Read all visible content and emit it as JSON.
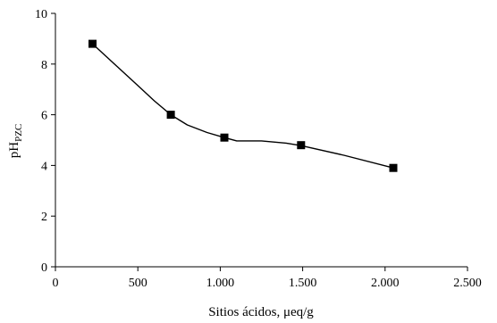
{
  "chart_data": {
    "type": "line",
    "title": "",
    "xlabel": "Sitios ácidos, μeq/g",
    "ylabel": {
      "main": "pH",
      "sub": "PZC"
    },
    "xlim": [
      0,
      2500
    ],
    "ylim": [
      0,
      10
    ],
    "x_ticks": [
      0,
      500,
      1000,
      1500,
      2000,
      2500
    ],
    "x_tick_labels": [
      "0",
      "500",
      "1.000",
      "1.500",
      "2.000",
      "2.500"
    ],
    "y_ticks": [
      0,
      2,
      4,
      6,
      8,
      10
    ],
    "y_tick_labels": [
      "0",
      "2",
      "4",
      "6",
      "8",
      "10"
    ],
    "grid": false,
    "legend": "none",
    "series": [
      {
        "marker": "square",
        "color": "#000000",
        "points": [
          {
            "x": 225,
            "y": 8.8
          },
          {
            "x": 700,
            "y": 6.0
          },
          {
            "x": 1025,
            "y": 5.1
          },
          {
            "x": 1490,
            "y": 4.8
          },
          {
            "x": 2050,
            "y": 3.9
          }
        ],
        "curve": [
          {
            "x": 225,
            "y": 8.8
          },
          {
            "x": 350,
            "y": 8.05
          },
          {
            "x": 500,
            "y": 7.15
          },
          {
            "x": 600,
            "y": 6.55
          },
          {
            "x": 700,
            "y": 6.0
          },
          {
            "x": 800,
            "y": 5.6
          },
          {
            "x": 920,
            "y": 5.3
          },
          {
            "x": 1025,
            "y": 5.1
          },
          {
            "x": 1100,
            "y": 4.97
          },
          {
            "x": 1250,
            "y": 4.97
          },
          {
            "x": 1400,
            "y": 4.88
          },
          {
            "x": 1490,
            "y": 4.78
          },
          {
            "x": 1750,
            "y": 4.4
          },
          {
            "x": 2050,
            "y": 3.9
          }
        ]
      }
    ]
  }
}
